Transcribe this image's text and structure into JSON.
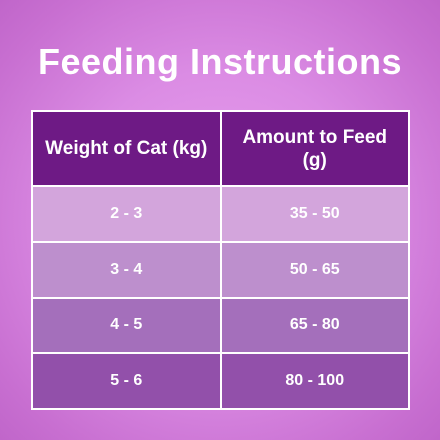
{
  "title": "Feeding Instructions",
  "table": {
    "headers": [
      "Weight of Cat (kg)",
      "Amount to Feed (g)"
    ],
    "rows": [
      [
        "2 - 3",
        "35 - 50"
      ],
      [
        "3 - 4",
        "50 - 65"
      ],
      [
        "4 - 5",
        "65 - 80"
      ],
      [
        "5 - 6",
        "80 - 100"
      ]
    ]
  },
  "colors": {
    "header_bg": "#6e1a85",
    "background": "#db8ce4",
    "row_colors": [
      "#d3a5dc",
      "#bd8fcd",
      "#a46fbb",
      "#9250aa"
    ],
    "text": "#ffffff"
  }
}
